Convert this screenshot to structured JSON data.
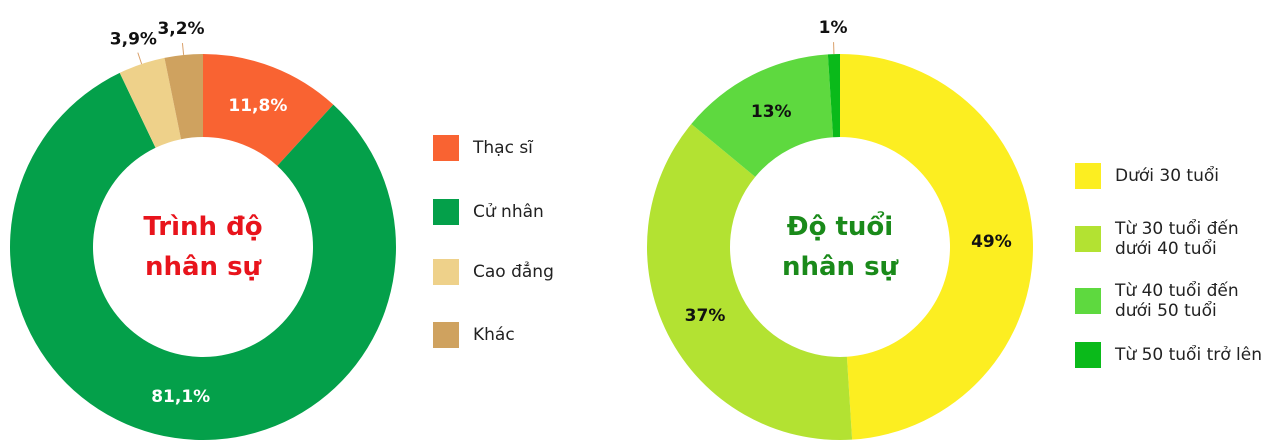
{
  "chart_data": [
    {
      "type": "donut",
      "title": "Trình độ nhân sự",
      "categories": [
        "Thạc sĩ",
        "Cử nhân",
        "Cao đẳng",
        "Khác"
      ],
      "values": [
        11.8,
        81.1,
        3.9,
        3.2
      ],
      "value_labels": [
        "11,8%",
        "81,1%",
        "3,9%",
        "3,2%"
      ],
      "colors": [
        "#f96332",
        "#04a04a",
        "#eed18a",
        "#cfa25f"
      ]
    },
    {
      "type": "donut",
      "title": "Độ tuổi nhân sự",
      "categories": [
        "Dưới 30 tuổi",
        "Từ 30 tuổi đến dưới 40 tuổi",
        "Từ 40 tuổi đến dưới 50 tuổi",
        "Từ 50 tuổi trở lên"
      ],
      "values": [
        49,
        37,
        13,
        1
      ],
      "value_labels": [
        "49%",
        "37%",
        "13%",
        "1%"
      ],
      "colors": [
        "#fcee21",
        "#b3e232",
        "#5ed93f",
        "#0aba1a"
      ]
    }
  ]
}
